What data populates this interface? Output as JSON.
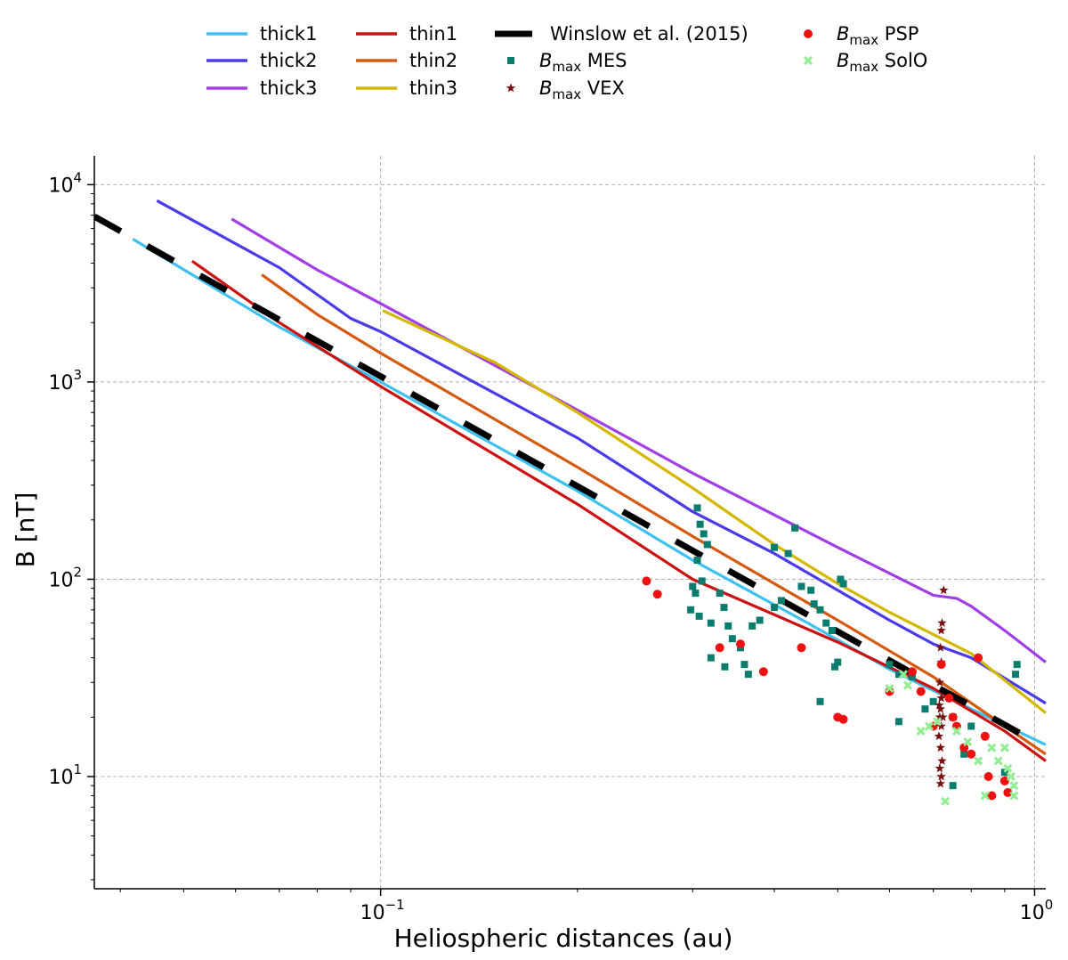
{
  "chart_data": {
    "type": "line",
    "xscale": "log",
    "yscale": "log",
    "xlim": [
      0.0365,
      1.04
    ],
    "ylim": [
      2.7,
      14000
    ],
    "xlabel": "Heliospheric distances (au)",
    "ylabel": "B [nT]",
    "grid": true,
    "legend_position": "top",
    "x_ticks": [
      {
        "value": 0.1,
        "base": "10",
        "exp": "−1"
      },
      {
        "value": 1.0,
        "base": "10",
        "exp": "0"
      }
    ],
    "y_ticks": [
      {
        "value": 10,
        "base": "10",
        "exp": "1"
      },
      {
        "value": 100,
        "base": "10",
        "exp": "2"
      },
      {
        "value": 1000,
        "base": "10",
        "exp": "3"
      },
      {
        "value": 10000,
        "base": "10",
        "exp": "4"
      }
    ],
    "series": [
      {
        "name": "thick1",
        "kind": "line",
        "color": "#3fc1f0",
        "points": [
          [
            0.0418,
            5300
          ],
          [
            0.07,
            1900
          ],
          [
            0.1,
            1000
          ],
          [
            0.2,
            280
          ],
          [
            0.3,
            125
          ],
          [
            0.45,
            60
          ],
          [
            0.6,
            35
          ],
          [
            0.8,
            22
          ],
          [
            1.04,
            14.5
          ]
        ]
      },
      {
        "name": "thick2",
        "kind": "line",
        "color": "#4b3be6",
        "points": [
          [
            0.0455,
            8300
          ],
          [
            0.07,
            3800
          ],
          [
            0.09,
            2100
          ],
          [
            0.1,
            1800
          ],
          [
            0.2,
            520
          ],
          [
            0.3,
            220
          ],
          [
            0.4,
            135
          ],
          [
            0.6,
            62
          ],
          [
            0.7,
            47
          ],
          [
            0.8,
            40
          ],
          [
            1.04,
            23.5
          ]
        ]
      },
      {
        "name": "thick3",
        "kind": "line",
        "color": "#a23ee6",
        "points": [
          [
            0.0592,
            6700
          ],
          [
            0.08,
            3700
          ],
          [
            0.1,
            2500
          ],
          [
            0.2,
            720
          ],
          [
            0.3,
            345
          ],
          [
            0.5,
            145
          ],
          [
            0.7,
            83
          ],
          [
            0.76,
            80
          ],
          [
            0.8,
            73
          ],
          [
            0.9,
            55
          ],
          [
            1.04,
            38
          ]
        ]
      },
      {
        "name": "thin1",
        "kind": "line",
        "color": "#cc1111",
        "points": [
          [
            0.0515,
            4100
          ],
          [
            0.07,
            2000
          ],
          [
            0.1,
            950
          ],
          [
            0.2,
            240
          ],
          [
            0.3,
            100
          ],
          [
            0.5,
            48
          ],
          [
            0.7,
            28
          ],
          [
            0.9,
            17
          ],
          [
            1.04,
            12
          ]
        ]
      },
      {
        "name": "thin2",
        "kind": "line",
        "color": "#d45a10",
        "points": [
          [
            0.0658,
            3500
          ],
          [
            0.08,
            2200
          ],
          [
            0.1,
            1400
          ],
          [
            0.2,
            370
          ],
          [
            0.3,
            165
          ],
          [
            0.5,
            62
          ],
          [
            0.7,
            32
          ],
          [
            0.9,
            18
          ],
          [
            1.04,
            13
          ]
        ]
      },
      {
        "name": "thin3",
        "kind": "line",
        "color": "#d4b800",
        "points": [
          [
            0.1008,
            2300
          ],
          [
            0.15,
            1250
          ],
          [
            0.2,
            700
          ],
          [
            0.3,
            290
          ],
          [
            0.4,
            150
          ],
          [
            0.5,
            95
          ],
          [
            0.6,
            68
          ],
          [
            0.8,
            42
          ],
          [
            1.04,
            21
          ]
        ]
      },
      {
        "name": "Winslow et al. (2015)",
        "kind": "dashed",
        "color": "#000000",
        "points": [
          [
            0.0365,
            6900
          ],
          [
            1.04,
            14
          ]
        ]
      },
      {
        "name": "B_max MES",
        "label_base": "B",
        "label_sub": "max",
        "label_rest": " MES",
        "kind": "square",
        "color": "#0b7d6e",
        "points": [
          [
            0.305,
            230
          ],
          [
            0.308,
            190
          ],
          [
            0.312,
            170
          ],
          [
            0.316,
            150
          ],
          [
            0.305,
            125
          ],
          [
            0.31,
            98
          ],
          [
            0.3,
            92
          ],
          [
            0.303,
            85
          ],
          [
            0.298,
            70
          ],
          [
            0.307,
            65
          ],
          [
            0.32,
            60
          ],
          [
            0.33,
            85
          ],
          [
            0.335,
            72
          ],
          [
            0.34,
            58
          ],
          [
            0.345,
            50
          ],
          [
            0.355,
            45
          ],
          [
            0.32,
            40
          ],
          [
            0.336,
            36
          ],
          [
            0.36,
            37
          ],
          [
            0.365,
            33
          ],
          [
            0.37,
            58
          ],
          [
            0.38,
            62
          ],
          [
            0.4,
            72
          ],
          [
            0.41,
            78
          ],
          [
            0.4,
            145
          ],
          [
            0.42,
            135
          ],
          [
            0.43,
            182
          ],
          [
            0.44,
            92
          ],
          [
            0.455,
            88
          ],
          [
            0.46,
            75
          ],
          [
            0.47,
            70
          ],
          [
            0.48,
            60
          ],
          [
            0.49,
            55
          ],
          [
            0.505,
            100
          ],
          [
            0.51,
            95
          ],
          [
            0.5,
            38
          ],
          [
            0.495,
            36
          ],
          [
            0.47,
            24
          ],
          [
            0.6,
            37
          ],
          [
            0.62,
            33
          ],
          [
            0.65,
            32
          ],
          [
            0.68,
            22
          ],
          [
            0.62,
            19
          ],
          [
            0.7,
            24
          ],
          [
            0.75,
            20
          ],
          [
            0.8,
            18
          ],
          [
            0.9,
            10.5
          ],
          [
            0.94,
            37
          ],
          [
            0.935,
            33
          ],
          [
            0.78,
            13
          ],
          [
            0.75,
            9
          ]
        ]
      },
      {
        "name": "B_max VEX",
        "label_base": "B",
        "label_sub": "max",
        "label_rest": " VEX",
        "kind": "star",
        "color": "#7a0f0f",
        "points": [
          [
            0.726,
            88
          ],
          [
            0.722,
            60
          ],
          [
            0.72,
            55
          ],
          [
            0.718,
            45
          ],
          [
            0.72,
            38
          ],
          [
            0.716,
            30
          ],
          [
            0.72,
            25
          ],
          [
            0.718,
            22
          ],
          [
            0.716,
            20
          ],
          [
            0.72,
            18
          ],
          [
            0.714,
            16
          ],
          [
            0.718,
            14
          ],
          [
            0.722,
            12
          ],
          [
            0.716,
            11
          ],
          [
            0.72,
            10
          ],
          [
            0.718,
            9.2
          ],
          [
            0.724,
            20
          ],
          [
            0.715,
            23
          ]
        ]
      },
      {
        "name": "B_max PSP",
        "label_base": "B",
        "label_sub": "max",
        "label_rest": " PSP",
        "kind": "circle",
        "color": "#ee1111",
        "points": [
          [
            0.255,
            98
          ],
          [
            0.265,
            84
          ],
          [
            0.33,
            45
          ],
          [
            0.355,
            47
          ],
          [
            0.385,
            34
          ],
          [
            0.44,
            45
          ],
          [
            0.5,
            20
          ],
          [
            0.51,
            19.5
          ],
          [
            0.6,
            27
          ],
          [
            0.65,
            34
          ],
          [
            0.67,
            27
          ],
          [
            0.7,
            18
          ],
          [
            0.72,
            37
          ],
          [
            0.74,
            25
          ],
          [
            0.75,
            20
          ],
          [
            0.76,
            18
          ],
          [
            0.78,
            14
          ],
          [
            0.8,
            13
          ],
          [
            0.82,
            40
          ],
          [
            0.84,
            16
          ],
          [
            0.85,
            10
          ],
          [
            0.86,
            8
          ],
          [
            0.9,
            9.5
          ],
          [
            0.91,
            8.3
          ]
        ]
      },
      {
        "name": "B_max SolO",
        "label_base": "B",
        "label_sub": "max",
        "label_rest": " SolO",
        "kind": "cross",
        "color": "#90ee90",
        "points": [
          [
            0.6,
            28
          ],
          [
            0.63,
            33
          ],
          [
            0.64,
            29
          ],
          [
            0.67,
            17
          ],
          [
            0.69,
            18
          ],
          [
            0.71,
            19
          ],
          [
            0.73,
            7.5
          ],
          [
            0.76,
            17
          ],
          [
            0.79,
            15
          ],
          [
            0.82,
            12
          ],
          [
            0.84,
            8
          ],
          [
            0.86,
            14
          ],
          [
            0.88,
            12
          ],
          [
            0.9,
            14
          ],
          [
            0.91,
            11
          ],
          [
            0.92,
            10
          ],
          [
            0.93,
            9
          ],
          [
            0.93,
            8
          ]
        ]
      }
    ]
  }
}
